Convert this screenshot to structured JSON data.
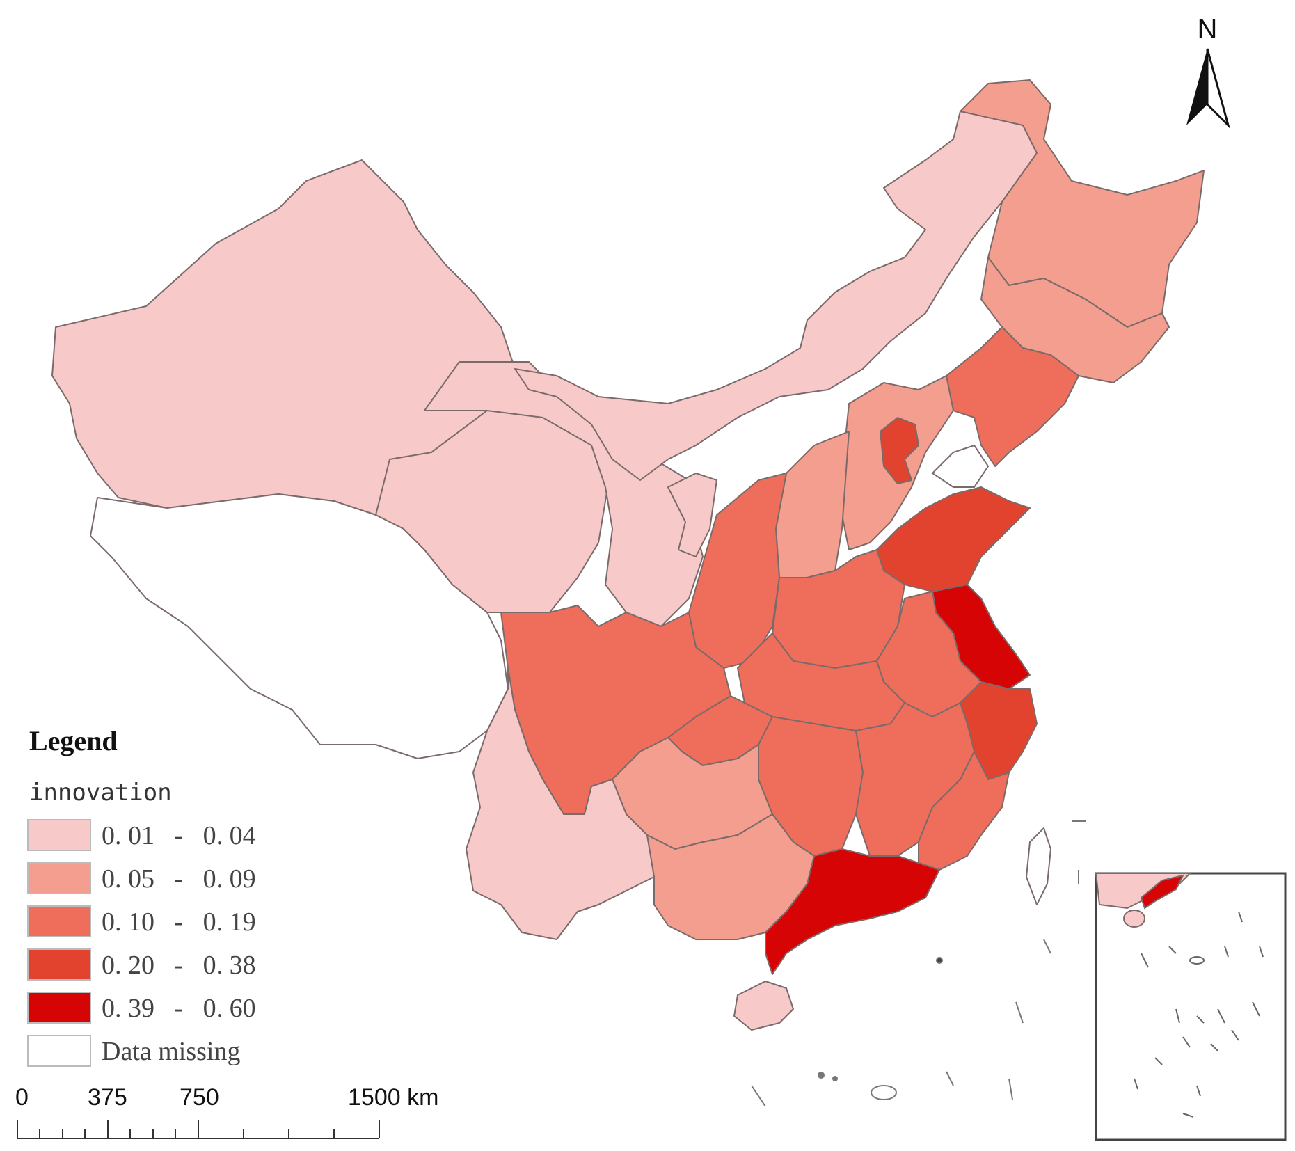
{
  "legend": {
    "title": "Legend",
    "field": "innovation",
    "classes": [
      {
        "label": "0. 01   -   0. 04",
        "color": "#F8C9C9"
      },
      {
        "label": "0. 05   -   0. 09",
        "color": "#F39E8E"
      },
      {
        "label": "0. 10   -   0. 19",
        "color": "#EE6E5B"
      },
      {
        "label": "0. 20   -   0. 38",
        "color": "#E2432F"
      },
      {
        "label": "0. 39   -   0. 60",
        "color": "#D60404"
      },
      {
        "label": "Data missing",
        "color": "#FFFFFF"
      }
    ]
  },
  "scale_bar": {
    "ticks": [
      "0",
      "375",
      "750",
      "1500 km"
    ]
  },
  "north_arrow": {
    "label": "N"
  }
}
